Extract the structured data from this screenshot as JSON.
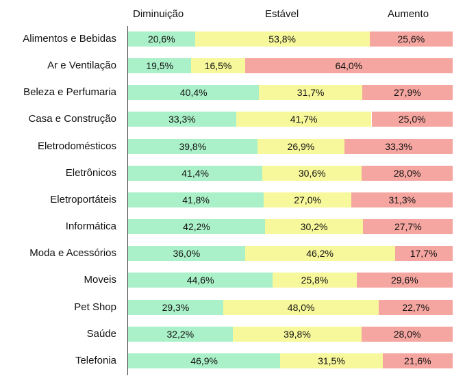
{
  "chart_data": {
    "type": "bar",
    "orientation": "horizontal",
    "stacked": true,
    "legend_position": "top",
    "xlim": [
      0,
      100
    ],
    "grid": false,
    "categories": [
      "Alimentos e Bebidas",
      "Ar e Ventilação",
      "Beleza e Perfumaria",
      "Casa e Construção",
      "Eletrodomésticos",
      "Eletrônicos",
      "Eletroportáteis",
      "Informática",
      "Moda e Acessórios",
      "Moveis",
      "Pet Shop",
      "Saúde",
      "Telefonia"
    ],
    "series": [
      {
        "name": "Diminuição",
        "color": "#aaf0c8",
        "values": [
          20.6,
          19.5,
          40.4,
          33.3,
          39.8,
          41.4,
          41.8,
          42.2,
          36.0,
          44.6,
          29.3,
          32.2,
          46.9
        ],
        "labels": [
          "20,6%",
          "19,5%",
          "40,4%",
          "33,3%",
          "39,8%",
          "41,4%",
          "41,8%",
          "42,2%",
          "36,0%",
          "44,6%",
          "29,3%",
          "32,2%",
          "46,9%"
        ]
      },
      {
        "name": "Estável",
        "color": "#f7f79c",
        "values": [
          53.8,
          16.5,
          31.7,
          41.7,
          26.9,
          30.6,
          27.0,
          30.2,
          46.2,
          25.8,
          48.0,
          39.8,
          31.5
        ],
        "labels": [
          "53,8%",
          "16,5%",
          "31,7%",
          "41,7%",
          "26,9%",
          "30,6%",
          "27,0%",
          "30,2%",
          "46,2%",
          "25,8%",
          "48,0%",
          "39,8%",
          "31,5%"
        ]
      },
      {
        "name": "Aumento",
        "color": "#f5a6a0",
        "values": [
          25.6,
          64.0,
          27.9,
          25.0,
          33.3,
          28.0,
          31.3,
          27.7,
          17.7,
          29.6,
          22.7,
          28.0,
          21.6
        ],
        "labels": [
          "25,6%",
          "64,0%",
          "27,9%",
          "25,0%",
          "33,3%",
          "28,0%",
          "31,3%",
          "27,7%",
          "17,7%",
          "29,6%",
          "22,7%",
          "28,0%",
          "21,6%"
        ]
      }
    ]
  }
}
